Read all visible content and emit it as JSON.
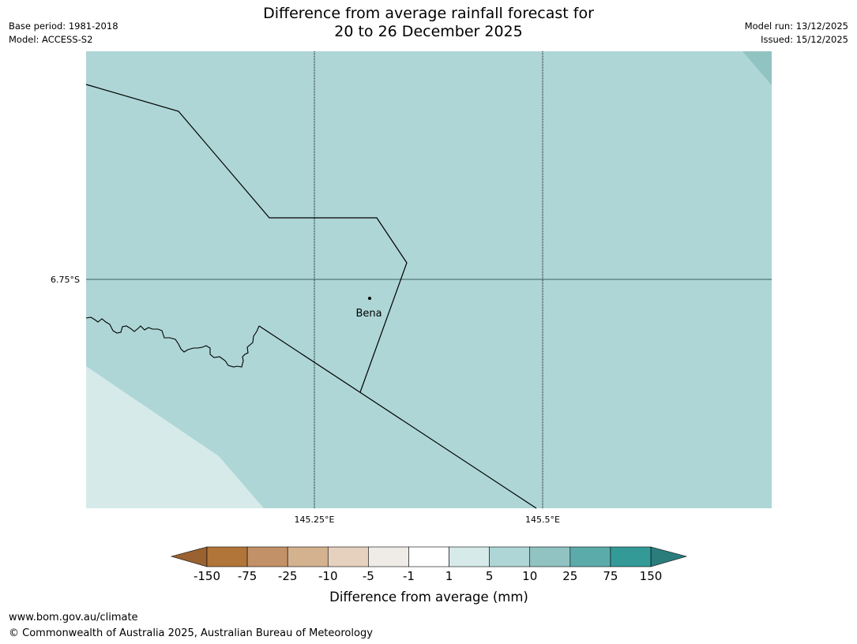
{
  "header": {
    "title_line1": "Difference from average rainfall forecast for",
    "title_line2": "20 to 26 December 2025",
    "base_period": "Base period: 1981-2018",
    "model": "Model: ACCESS-S2",
    "model_run": "Model run: 13/12/2025",
    "issued": "Issued: 15/12/2025"
  },
  "map": {
    "latitude_label": "6.75°S",
    "longitude_labels": [
      "145.25°E",
      "145.5°E"
    ],
    "places": [
      {
        "name": "Bena"
      }
    ],
    "colors": {
      "main_fill": "#aed6d6",
      "low_fill": "#d6eaea",
      "high_fill": "#90c3c2",
      "borders": "#000000",
      "gridline": "#3a5f5f"
    }
  },
  "legend": {
    "title": "Difference from average (mm)",
    "tick_labels": [
      "-150",
      "-75",
      "-25",
      "-10",
      "-5",
      "-1",
      "1",
      "5",
      "10",
      "25",
      "75",
      "150"
    ],
    "bin_colors": [
      "#b1753a",
      "#c39168",
      "#d5b28f",
      "#e5d1be",
      "#efebe7",
      "#ffffff",
      "#d6eaea",
      "#aed6d6",
      "#90c3c2",
      "#5cabab",
      "#339a98"
    ],
    "low_extend_color": "#9a6131",
    "high_extend_color": "#2b7d7c"
  },
  "footer": {
    "website": "www.bom.gov.au/climate",
    "copyright": "© Commonwealth of Australia 2025, Australian Bureau of Meteorology"
  }
}
